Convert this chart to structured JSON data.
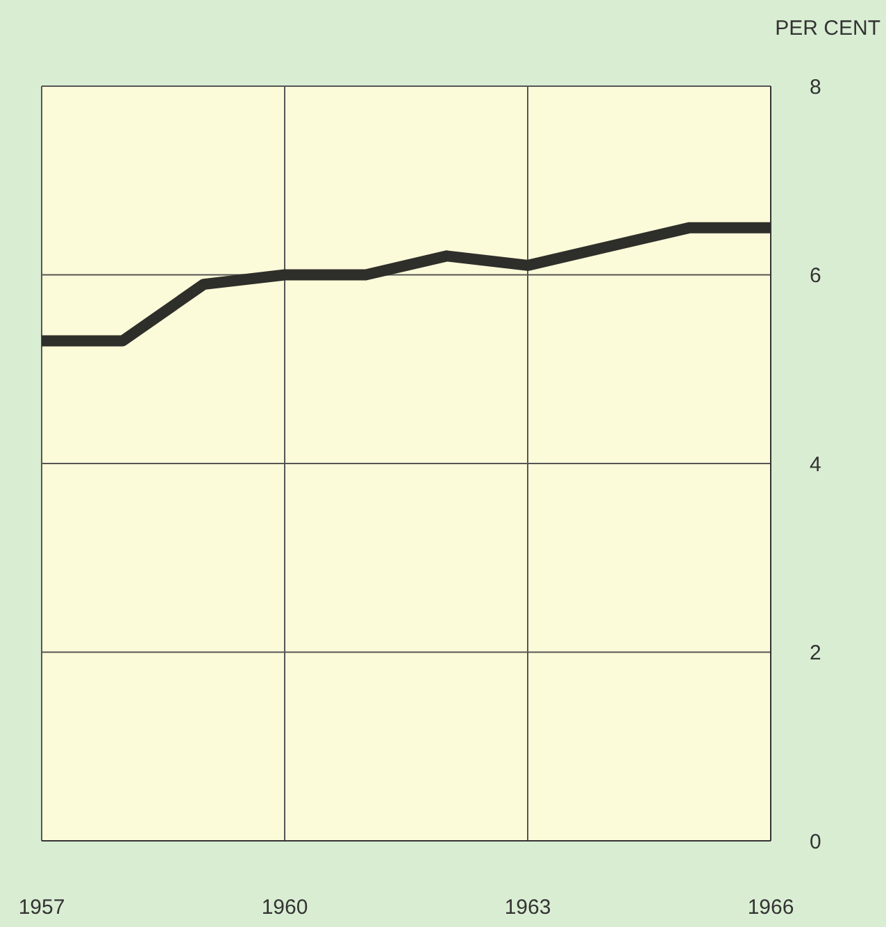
{
  "chart_data": {
    "type": "line",
    "ylabel": "PER CENT",
    "x": [
      1957,
      1958,
      1959,
      1960,
      1961,
      1962,
      1963,
      1964,
      1965,
      1966
    ],
    "series": [
      {
        "color": "#2e2e2a",
        "values": [
          5.3,
          5.3,
          5.9,
          6.0,
          6.0,
          6.2,
          6.1,
          6.3,
          6.5,
          6.5
        ]
      }
    ],
    "xlim": [
      1957,
      1966
    ],
    "xticks": [
      1957,
      1960,
      1963,
      1966
    ],
    "ylim": [
      0,
      8
    ],
    "yticks": [
      0,
      2,
      4,
      6,
      8
    ],
    "grid": true,
    "marker": "none",
    "line_style": "solid",
    "legend": false
  }
}
